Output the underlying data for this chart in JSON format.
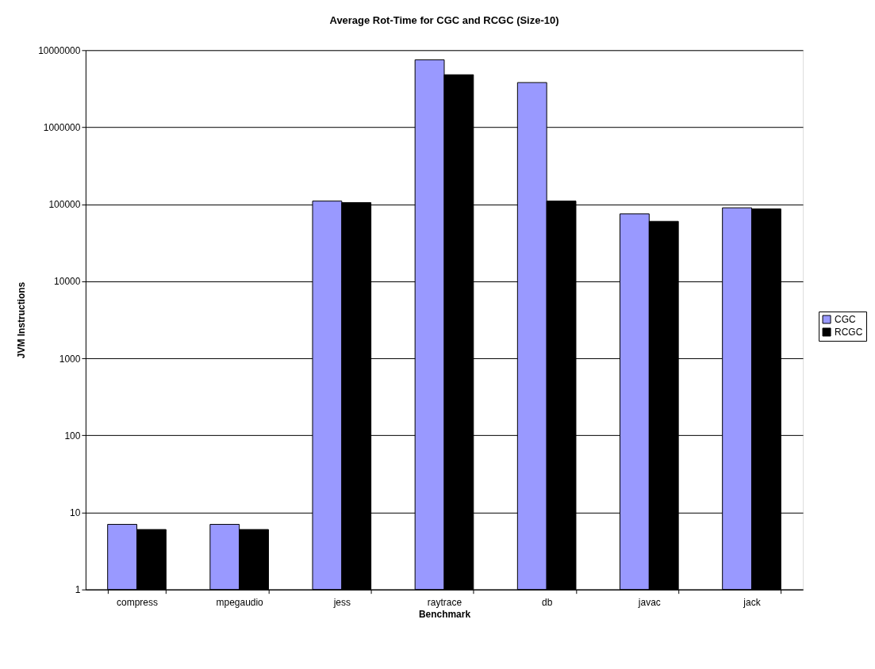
{
  "chart_data": {
    "type": "bar",
    "title": "Average Rot-Time for CGC and RCGC (Size-10)",
    "xlabel": "Benchmark",
    "ylabel": "JVM Instructions",
    "categories": [
      "compress",
      "mpegaudio",
      "jess",
      "raytrace",
      "db",
      "javac",
      "jack"
    ],
    "series": [
      {
        "name": "CGC",
        "color": "#9999ff",
        "values": [
          7,
          7,
          110000,
          7500000,
          3800000,
          75000,
          90000
        ]
      },
      {
        "name": "RCGC",
        "color": "#000000",
        "values": [
          6,
          6,
          105000,
          4800000,
          110000,
          60000,
          87000
        ]
      }
    ],
    "log": true,
    "ylim": [
      1,
      10000000
    ],
    "yticks": [
      1,
      10,
      100,
      1000,
      10000,
      100000,
      1000000,
      10000000
    ],
    "grid": "y",
    "legend": "right"
  }
}
